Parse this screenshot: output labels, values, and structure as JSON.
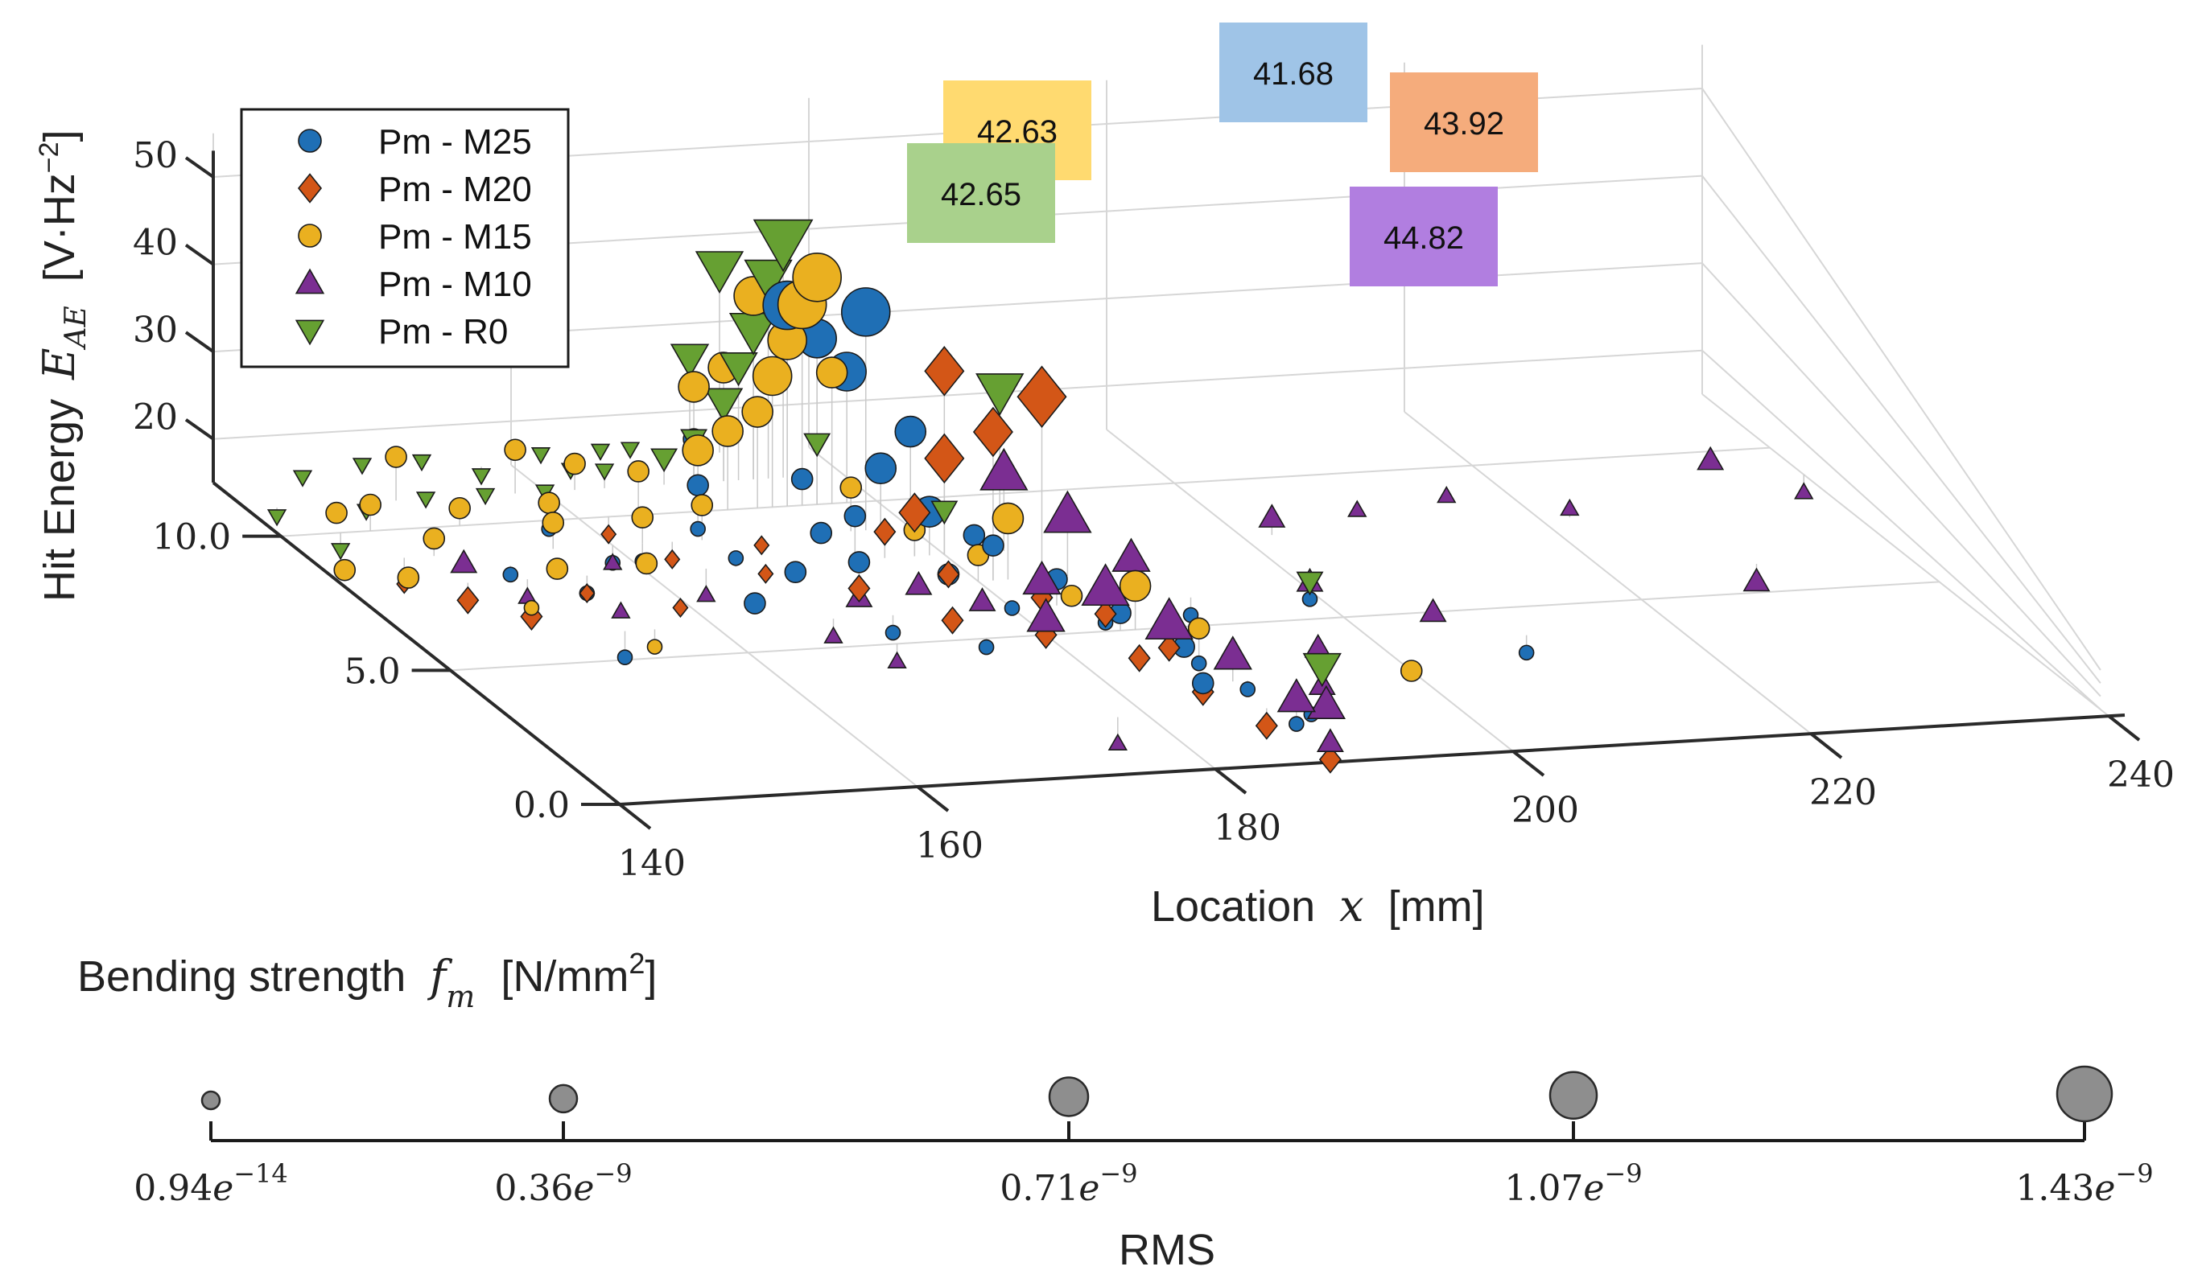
{
  "chart_data": {
    "type": "scatter",
    "projection": "3d",
    "xlabel": "Location",
    "xlabel_var": "x",
    "xlabel_unit": "[mm]",
    "x_ticks": [
      "140",
      "160",
      "180",
      "200",
      "220",
      "240"
    ],
    "y_ticks": [
      "0.0",
      "5.0",
      "10.0"
    ],
    "z_ticks": [
      "20",
      "30",
      "40",
      "50"
    ],
    "zlabel": "Hit Energy",
    "zlabel_var": "E",
    "zlabel_sub": "AE",
    "zlabel_unit_pre": "[V·Hz",
    "zlabel_unit_sup": "−2",
    "zlabel_unit_post": "]",
    "xlim": [
      140,
      240
    ],
    "ylim": [
      0,
      12
    ],
    "zlim": [
      15,
      50
    ],
    "legend_position": "top-left",
    "series": [
      {
        "name": "Pm - M25",
        "color": "#1f6fb5",
        "marker": "circle",
        "strength": "41.68",
        "strength_color": "#9fc4e7",
        "points": [
          [
            152,
            8.5,
            14
          ],
          [
            162,
            9,
            13
          ],
          [
            165,
            7,
            14
          ],
          [
            168,
            10,
            13
          ],
          [
            170,
            8,
            14
          ],
          [
            172,
            6,
            13
          ],
          [
            174,
            9,
            15
          ],
          [
            176,
            5,
            14
          ],
          [
            178,
            7,
            16
          ],
          [
            180,
            6,
            15
          ],
          [
            182,
            8,
            17
          ],
          [
            184,
            5,
            16
          ],
          [
            186,
            3,
            15
          ],
          [
            188,
            4,
            14
          ],
          [
            190,
            2,
            13
          ],
          [
            192,
            6,
            13
          ],
          [
            175,
            10,
            18
          ],
          [
            178,
            9,
            22
          ],
          [
            180,
            9,
            26
          ],
          [
            178,
            10,
            30
          ],
          [
            176,
            10,
            34
          ],
          [
            174,
            10,
            38
          ],
          [
            170,
            11,
            20
          ],
          [
            168,
            10,
            18
          ],
          [
            177,
            9,
            40
          ],
          [
            179,
            8,
            20
          ],
          [
            181,
            7,
            19
          ],
          [
            183,
            6,
            18
          ],
          [
            185,
            5,
            17
          ],
          [
            187,
            4,
            16
          ],
          [
            189,
            3,
            14
          ],
          [
            191,
            2,
            14
          ],
          [
            160,
            9,
            13
          ],
          [
            158,
            10,
            14
          ],
          [
            156,
            8,
            13
          ],
          [
            154,
            6,
            12
          ],
          [
            210,
            4,
            13
          ],
          [
            200,
            6,
            14
          ],
          [
            166,
            8,
            16
          ],
          [
            172,
            7,
            18
          ],
          [
            174,
            8,
            20
          ]
        ],
        "sizes": [
          0,
          0,
          1,
          0,
          1,
          0,
          1,
          0,
          1,
          0,
          1,
          0,
          1,
          0,
          0,
          0,
          1,
          2,
          2,
          3,
          3,
          4,
          1,
          1,
          4,
          2,
          1,
          1,
          1,
          1,
          0,
          0,
          0,
          0,
          0,
          0,
          0,
          0,
          0,
          1,
          1
        ]
      },
      {
        "name": "Pm - M20",
        "color": "#d35617",
        "marker": "diamond",
        "strength": "43.92",
        "strength_color": "#f5ac7c",
        "points": [
          [
            148,
            8,
            13
          ],
          [
            150,
            7,
            14
          ],
          [
            146,
            9,
            12
          ],
          [
            156,
            8,
            13
          ],
          [
            160,
            7,
            14
          ],
          [
            164,
            9,
            13
          ],
          [
            168,
            8,
            14
          ],
          [
            172,
            7,
            15
          ],
          [
            176,
            6,
            14
          ],
          [
            180,
            5,
            15
          ],
          [
            182,
            6,
            16
          ],
          [
            184,
            4,
            15
          ],
          [
            186,
            3,
            14
          ],
          [
            188,
            2,
            13
          ],
          [
            190,
            1,
            12
          ],
          [
            178,
            8,
            20
          ],
          [
            180,
            8,
            26
          ],
          [
            181,
            7,
            32
          ],
          [
            180,
            8,
            36
          ],
          [
            182,
            6,
            39
          ],
          [
            176,
            8,
            18
          ],
          [
            178,
            7,
            16
          ],
          [
            184,
            5,
            17
          ],
          [
            186,
            4,
            16
          ],
          [
            170,
            9,
            14
          ],
          [
            162,
            10,
            13
          ]
        ],
        "sizes": [
          1,
          1,
          0,
          0,
          0,
          0,
          0,
          1,
          1,
          1,
          1,
          1,
          1,
          1,
          1,
          2,
          3,
          3,
          3,
          4,
          1,
          1,
          1,
          1,
          0,
          0
        ]
      },
      {
        "name": "Pm - M15",
        "color": "#eab020",
        "marker": "circle",
        "strength": "42.63",
        "strength_color": "#ffda70",
        "points": [
          [
            142,
            9,
            14
          ],
          [
            144,
            8,
            16
          ],
          [
            146,
            10,
            18
          ],
          [
            148,
            9,
            17
          ],
          [
            150,
            7,
            15
          ],
          [
            152,
            10,
            17
          ],
          [
            154,
            8,
            16
          ],
          [
            156,
            9,
            18
          ],
          [
            158,
            10,
            17
          ],
          [
            160,
            8,
            16
          ],
          [
            162,
            9,
            18
          ],
          [
            164,
            10,
            20
          ],
          [
            166,
            9,
            19
          ],
          [
            168,
            10,
            22
          ],
          [
            170,
            10,
            24
          ],
          [
            172,
            10,
            26
          ],
          [
            173,
            10,
            30
          ],
          [
            174,
            10,
            34
          ],
          [
            175,
            10,
            38
          ],
          [
            176,
            10,
            41
          ],
          [
            174,
            11,
            36
          ],
          [
            172,
            11,
            28
          ],
          [
            176,
            9,
            20
          ],
          [
            178,
            8,
            18
          ],
          [
            182,
            7,
            22
          ],
          [
            186,
            5,
            20
          ],
          [
            188,
            4,
            18
          ],
          [
            200,
            3,
            15
          ],
          [
            150,
            11,
            20
          ],
          [
            146,
            11,
            14
          ],
          [
            158,
            11,
            20
          ],
          [
            162,
            11,
            18
          ],
          [
            156,
            6,
            13
          ],
          [
            184,
            6,
            16
          ],
          [
            180,
            7,
            18
          ],
          [
            170,
            11,
            26
          ],
          [
            177,
            10,
            30
          ]
        ],
        "sizes": [
          1,
          1,
          1,
          1,
          0,
          1,
          1,
          1,
          1,
          1,
          1,
          1,
          1,
          2,
          2,
          2,
          3,
          3,
          4,
          4,
          3,
          2,
          1,
          1,
          2,
          2,
          1,
          1,
          1,
          1,
          1,
          1,
          0,
          1,
          1,
          2,
          2
        ]
      },
      {
        "name": "Pm - M10",
        "color": "#7b2e92",
        "marker": "triangle-up",
        "strength": "44.82",
        "strength_color": "#b17ee0",
        "points": [
          [
            150,
            9,
            14
          ],
          [
            152,
            8,
            13
          ],
          [
            156,
            7,
            14
          ],
          [
            160,
            9,
            13
          ],
          [
            164,
            8,
            12
          ],
          [
            168,
            6,
            13
          ],
          [
            172,
            7,
            14
          ],
          [
            176,
            7,
            15
          ],
          [
            178,
            6,
            16
          ],
          [
            180,
            5,
            17
          ],
          [
            182,
            6,
            18
          ],
          [
            184,
            5,
            20
          ],
          [
            186,
            4,
            19
          ],
          [
            188,
            3,
            18
          ],
          [
            190,
            2,
            16
          ],
          [
            192,
            2,
            15
          ],
          [
            194,
            3,
            14
          ],
          [
            196,
            4,
            15
          ],
          [
            200,
            6,
            16
          ],
          [
            202,
            8,
            17
          ],
          [
            206,
            5,
            15
          ],
          [
            210,
            9,
            14
          ],
          [
            216,
            9,
            15
          ],
          [
            222,
            8,
            16
          ],
          [
            230,
            6,
            13
          ],
          [
            236,
            10,
            14
          ],
          [
            240,
            9,
            13
          ],
          [
            186,
            7,
            22
          ],
          [
            188,
            6,
            20
          ],
          [
            184,
            8,
            24
          ],
          [
            190,
            1,
            14
          ],
          [
            170,
            5,
            13
          ],
          [
            178,
            2,
            12
          ]
        ],
        "sizes": [
          1,
          0,
          0,
          0,
          0,
          0,
          1,
          1,
          1,
          2,
          2,
          3,
          3,
          2,
          2,
          2,
          1,
          1,
          1,
          1,
          1,
          0,
          0,
          0,
          1,
          1,
          0,
          3,
          2,
          3,
          1,
          0,
          0
        ]
      },
      {
        "name": "Pm - R0",
        "color": "#66a032",
        "marker": "triangle-down",
        "strength": "42.65",
        "strength_color": "#a9d18c",
        "points": [
          [
            142,
            11,
            14
          ],
          [
            144,
            10,
            13
          ],
          [
            146,
            12,
            15
          ],
          [
            148,
            11,
            14
          ],
          [
            150,
            12,
            16
          ],
          [
            152,
            11,
            15
          ],
          [
            154,
            12,
            16
          ],
          [
            156,
            11,
            15
          ],
          [
            158,
            12,
            14
          ],
          [
            160,
            11,
            15
          ],
          [
            162,
            12,
            16
          ],
          [
            164,
            11,
            17
          ],
          [
            166,
            12,
            16
          ],
          [
            168,
            11,
            18
          ],
          [
            170,
            11,
            20
          ],
          [
            172,
            11,
            24
          ],
          [
            173,
            11,
            28
          ],
          [
            174,
            11,
            32
          ],
          [
            175,
            11,
            38
          ],
          [
            176,
            11,
            42
          ],
          [
            174,
            12,
            36
          ],
          [
            172,
            12,
            26
          ],
          [
            176,
            10,
            22
          ],
          [
            186,
            9,
            30
          ],
          [
            194,
            3,
            16
          ],
          [
            200,
            6,
            16
          ],
          [
            180,
            8,
            20
          ],
          [
            168,
            12,
            16
          ],
          [
            164,
            12,
            14
          ]
        ],
        "sizes": [
          0,
          0,
          0,
          0,
          0,
          0,
          0,
          0,
          0,
          0,
          0,
          0,
          0,
          1,
          1,
          2,
          2,
          3,
          3,
          4,
          3,
          2,
          1,
          3,
          2,
          1,
          1,
          0,
          0
        ]
      }
    ],
    "size_legend": {
      "title": "Bending strength",
      "title_var": "f",
      "title_sub": "m",
      "title_unit_pre": "[N/mm",
      "title_unit_sup": "2",
      "title_unit_post": "]",
      "xlabel": "RMS",
      "ticks": [
        {
          "mant": "0.94",
          "exp": "−14"
        },
        {
          "mant": "0.36",
          "exp": "−9"
        },
        {
          "mant": "0.71",
          "exp": "−9"
        },
        {
          "mant": "1.07",
          "exp": "−9"
        },
        {
          "mant": "1.43",
          "exp": "−9"
        }
      ]
    }
  }
}
